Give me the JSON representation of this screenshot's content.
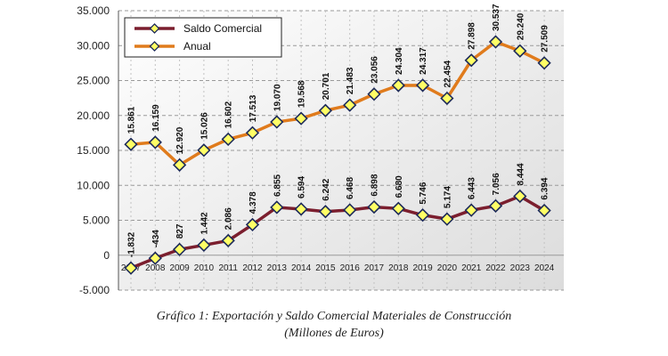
{
  "chart_data": {
    "type": "line",
    "x": [
      "2007",
      "2008",
      "2009",
      "2010",
      "2011",
      "2012",
      "2013",
      "2014",
      "2015",
      "2016",
      "2017",
      "2018",
      "2019",
      "2020",
      "2021",
      "2022",
      "2023",
      "2024"
    ],
    "series": [
      {
        "name": "Saldo Comercial",
        "color": "#7b1e2e",
        "values": [
          -1832,
          -434,
          827,
          1442,
          2086,
          4378,
          6855,
          6594,
          6242,
          6468,
          6898,
          6680,
          5746,
          5174,
          6443,
          7056,
          8444,
          6394
        ],
        "labels": [
          "-1.832",
          "-434",
          "827",
          "1.442",
          "2.086",
          "4.378",
          "6.855",
          "6.594",
          "6.242",
          "6.468",
          "6.898",
          "6.680",
          "5.746",
          "5.174",
          "6.443",
          "7.056",
          "8.444",
          "6.394"
        ]
      },
      {
        "name": "Anual",
        "color": "#e07b1c",
        "values": [
          15861,
          16159,
          12920,
          15026,
          16602,
          17513,
          19070,
          19568,
          20701,
          21483,
          23056,
          24304,
          24317,
          22454,
          27898,
          30537,
          29240,
          27509
        ],
        "labels": [
          "15.861",
          "16.159",
          "12.920",
          "15.026",
          "16.602",
          "17.513",
          "19.070",
          "19.568",
          "20.701",
          "21.483",
          "23.056",
          "24.304",
          "24.317",
          "22.454",
          "27.898",
          "30.537",
          "29.240",
          "27.509"
        ]
      }
    ],
    "ylim": [
      -5000,
      35000
    ],
    "yticks": [
      -5000,
      0,
      5000,
      10000,
      15000,
      20000,
      25000,
      30000,
      35000
    ],
    "ytick_labels": [
      "-5.000",
      "0",
      "5.000",
      "10.000",
      "15.000",
      "20.000",
      "25.000",
      "30.000",
      "35.000"
    ],
    "grid": true,
    "legend_position": "top-left",
    "marker_color": "#ffff66"
  },
  "caption": {
    "line1": "Gráfico 1: Exportación y Saldo Comercial Materiales de Construcción",
    "line2": "(Millones de Euros)"
  }
}
